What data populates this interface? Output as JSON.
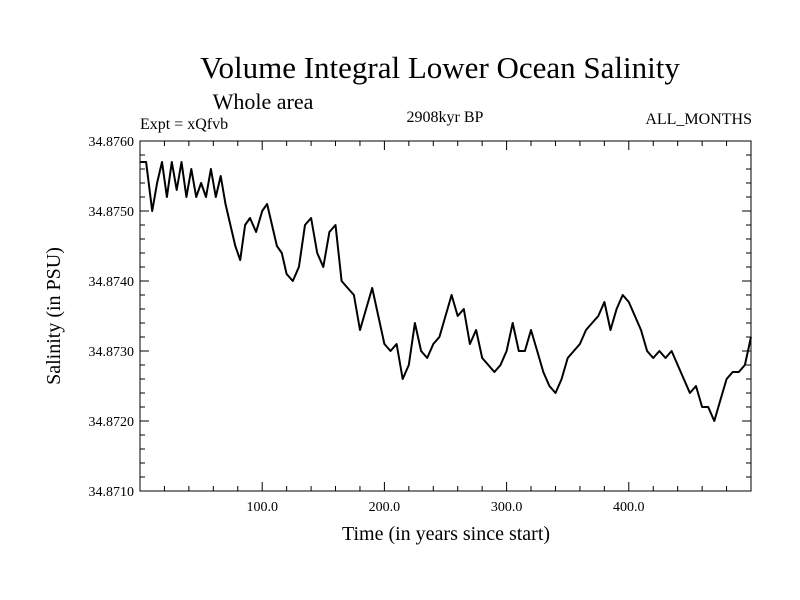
{
  "chart_data": {
    "type": "line",
    "title": "Volume Integral Lower Ocean Salinity",
    "subtitle": "Whole area",
    "left_label": "Expt = xQfvb",
    "center_label": "2908kyr BP",
    "right_label": "ALL_MONTHS",
    "xlabel": "Time (in years since start)",
    "ylabel": "Salinity (in PSU)",
    "xlim": [
      0,
      500
    ],
    "ylim": [
      34.871,
      34.876
    ],
    "x_ticks": [
      100,
      200,
      300,
      400
    ],
    "x_tick_labels": [
      "100.0",
      "200.0",
      "300.0",
      "400.0"
    ],
    "y_ticks": [
      34.871,
      34.872,
      34.873,
      34.874,
      34.875,
      34.876
    ],
    "y_tick_labels": [
      "34.8710",
      "34.8720",
      "34.8730",
      "34.8740",
      "34.8750",
      "34.8760"
    ],
    "grid": false,
    "line_color": "#000000",
    "series": [
      {
        "name": "salinity",
        "x": [
          0,
          5,
          10,
          14,
          18,
          22,
          26,
          30,
          34,
          38,
          42,
          46,
          50,
          54,
          58,
          62,
          66,
          70,
          74,
          78,
          82,
          86,
          90,
          95,
          100,
          104,
          108,
          112,
          116,
          120,
          125,
          130,
          135,
          140,
          145,
          150,
          155,
          160,
          165,
          170,
          175,
          180,
          185,
          190,
          195,
          200,
          205,
          210,
          215,
          220,
          225,
          230,
          235,
          240,
          245,
          250,
          255,
          260,
          265,
          270,
          275,
          280,
          285,
          290,
          295,
          300,
          305,
          310,
          315,
          320,
          325,
          330,
          335,
          340,
          345,
          350,
          355,
          360,
          365,
          370,
          375,
          380,
          385,
          390,
          395,
          400,
          405,
          410,
          415,
          420,
          425,
          430,
          435,
          440,
          445,
          450,
          455,
          460,
          465,
          470,
          475,
          480,
          485,
          490,
          495,
          500
        ],
        "values": [
          34.8757,
          34.8757,
          34.875,
          34.8754,
          34.8757,
          34.8752,
          34.8757,
          34.8753,
          34.8757,
          34.8752,
          34.8756,
          34.8752,
          34.8754,
          34.8752,
          34.8756,
          34.8752,
          34.8755,
          34.8751,
          34.8748,
          34.8745,
          34.8743,
          34.8748,
          34.8749,
          34.8747,
          34.875,
          34.8751,
          34.8748,
          34.8745,
          34.8744,
          34.8741,
          34.874,
          34.8742,
          34.8748,
          34.8749,
          34.8744,
          34.8742,
          34.8747,
          34.8748,
          34.874,
          34.8739,
          34.8738,
          34.8733,
          34.8736,
          34.8739,
          34.8735,
          34.8731,
          34.873,
          34.8731,
          34.8726,
          34.8728,
          34.8734,
          34.873,
          34.8729,
          34.8731,
          34.8732,
          34.8735,
          34.8738,
          34.8735,
          34.8736,
          34.8731,
          34.8733,
          34.8729,
          34.8728,
          34.8727,
          34.8728,
          34.873,
          34.8734,
          34.873,
          34.873,
          34.8733,
          34.873,
          34.8727,
          34.8725,
          34.8724,
          34.8726,
          34.8729,
          34.873,
          34.8731,
          34.8733,
          34.8734,
          34.8735,
          34.8737,
          34.8733,
          34.8736,
          34.8738,
          34.8737,
          34.8735,
          34.8733,
          34.873,
          34.8729,
          34.873,
          34.8729,
          34.873,
          34.8728,
          34.8726,
          34.8724,
          34.8725,
          34.8722,
          34.8722,
          34.872,
          34.8723,
          34.8726,
          34.8727,
          34.8727,
          34.8728,
          34.8732
        ]
      }
    ]
  }
}
